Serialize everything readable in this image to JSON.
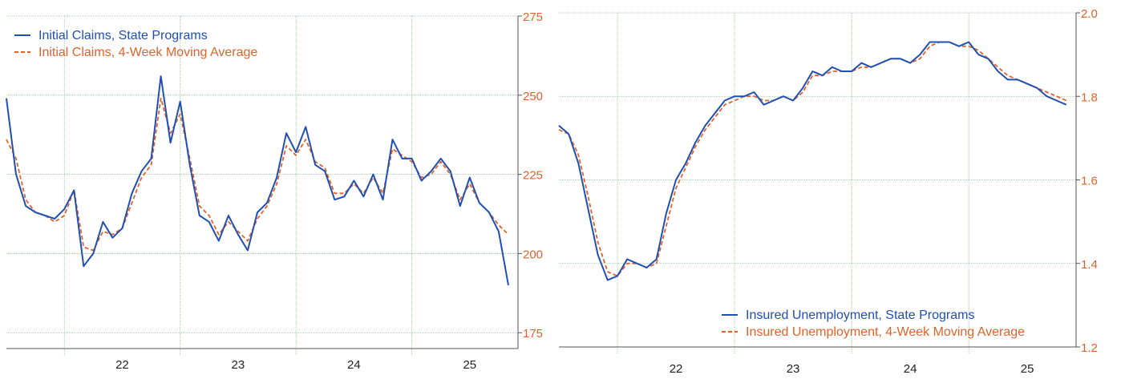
{
  "colors": {
    "blue": "#1f4fb3",
    "orange": "#e0622a",
    "grid": "#8fbf8f",
    "axis": "#555555"
  },
  "chart_data": [
    {
      "type": "line",
      "y_axis_side": "right",
      "grid": true,
      "legend_position": "top-left",
      "x_ticks": [
        "22",
        "23",
        "24",
        "25"
      ],
      "xlim": [
        "2021-07",
        "2025-12"
      ],
      "ylim": [
        170,
        275
      ],
      "y_ticks": [
        175,
        200,
        225,
        250,
        275
      ],
      "series": [
        {
          "name": "Initial Claims, State Programs",
          "style": "solid",
          "color": "#1f4fb3",
          "x": [
            "2021-07",
            "2021-08",
            "2021-09",
            "2021-10",
            "2021-11",
            "2021-12",
            "2022-01",
            "2022-02",
            "2022-03",
            "2022-04",
            "2022-05",
            "2022-06",
            "2022-07",
            "2022-08",
            "2022-09",
            "2022-10",
            "2022-11",
            "2022-12",
            "2023-01",
            "2023-02",
            "2023-03",
            "2023-04",
            "2023-05",
            "2023-06",
            "2023-07",
            "2023-08",
            "2023-09",
            "2023-10",
            "2023-11",
            "2023-12",
            "2024-01",
            "2024-02",
            "2024-03",
            "2024-04",
            "2024-05",
            "2024-06",
            "2024-07",
            "2024-08",
            "2024-09",
            "2024-10",
            "2024-11",
            "2024-12",
            "2025-01",
            "2025-02",
            "2025-03",
            "2025-04",
            "2025-05",
            "2025-06",
            "2025-07",
            "2025-08",
            "2025-09",
            "2025-10",
            "2025-11"
          ],
          "values": [
            249,
            225,
            215,
            213,
            212,
            211,
            214,
            220,
            196,
            200,
            210,
            205,
            208,
            219,
            226,
            230,
            256,
            235,
            248,
            228,
            212,
            210,
            204,
            212,
            206,
            201,
            213,
            216,
            224,
            238,
            232,
            240,
            228,
            226,
            217,
            218,
            223,
            218,
            225,
            217,
            236,
            230,
            230,
            223,
            226,
            230,
            226,
            215,
            224,
            216,
            213,
            207,
            190
          ]
        },
        {
          "name": "Initial Claims, 4-Week Moving Average",
          "style": "dashed",
          "color": "#e0622a",
          "x": [
            "2021-07",
            "2021-08",
            "2021-09",
            "2021-10",
            "2021-11",
            "2021-12",
            "2022-01",
            "2022-02",
            "2022-03",
            "2022-04",
            "2022-05",
            "2022-06",
            "2022-07",
            "2022-08",
            "2022-09",
            "2022-10",
            "2022-11",
            "2022-12",
            "2023-01",
            "2023-02",
            "2023-03",
            "2023-04",
            "2023-05",
            "2023-06",
            "2023-07",
            "2023-08",
            "2023-09",
            "2023-10",
            "2023-11",
            "2023-12",
            "2024-01",
            "2024-02",
            "2024-03",
            "2024-04",
            "2024-05",
            "2024-06",
            "2024-07",
            "2024-08",
            "2024-09",
            "2024-10",
            "2024-11",
            "2024-12",
            "2025-01",
            "2025-02",
            "2025-03",
            "2025-04",
            "2025-05",
            "2025-06",
            "2025-07",
            "2025-08",
            "2025-09",
            "2025-10",
            "2025-11"
          ],
          "values": [
            236,
            230,
            217,
            213,
            212,
            210,
            212,
            220,
            202,
            201,
            207,
            206,
            208,
            216,
            224,
            228,
            249,
            238,
            244,
            230,
            215,
            212,
            206,
            210,
            207,
            204,
            211,
            215,
            222,
            234,
            231,
            236,
            229,
            227,
            219,
            219,
            222,
            219,
            224,
            219,
            233,
            231,
            229,
            224,
            225,
            229,
            225,
            217,
            222,
            216,
            213,
            209,
            206
          ]
        }
      ]
    },
    {
      "type": "line",
      "y_axis_side": "right",
      "grid": true,
      "legend_position": "bottom-right",
      "x_ticks": [
        "22",
        "23",
        "24",
        "25"
      ],
      "xlim": [
        "2021-07",
        "2025-12"
      ],
      "ylim": [
        1.2,
        2.0
      ],
      "y_ticks": [
        1.2,
        1.4,
        1.6,
        1.8,
        2.0
      ],
      "series": [
        {
          "name": "Insured Unemployment, State Programs",
          "style": "solid",
          "color": "#1f4fb3",
          "x": [
            "2021-07",
            "2021-08",
            "2021-09",
            "2021-10",
            "2021-11",
            "2021-12",
            "2022-01",
            "2022-02",
            "2022-03",
            "2022-04",
            "2022-05",
            "2022-06",
            "2022-07",
            "2022-08",
            "2022-09",
            "2022-10",
            "2022-11",
            "2022-12",
            "2023-01",
            "2023-02",
            "2023-03",
            "2023-04",
            "2023-05",
            "2023-06",
            "2023-07",
            "2023-08",
            "2023-09",
            "2023-10",
            "2023-11",
            "2023-12",
            "2024-01",
            "2024-02",
            "2024-03",
            "2024-04",
            "2024-05",
            "2024-06",
            "2024-07",
            "2024-08",
            "2024-09",
            "2024-10",
            "2024-11",
            "2024-12",
            "2025-01",
            "2025-02",
            "2025-03",
            "2025-04",
            "2025-05",
            "2025-06",
            "2025-07",
            "2025-08",
            "2025-09",
            "2025-10",
            "2025-11"
          ],
          "values": [
            1.73,
            1.71,
            1.64,
            1.53,
            1.42,
            1.36,
            1.37,
            1.41,
            1.4,
            1.39,
            1.41,
            1.52,
            1.6,
            1.64,
            1.69,
            1.73,
            1.76,
            1.79,
            1.8,
            1.8,
            1.81,
            1.78,
            1.79,
            1.8,
            1.79,
            1.82,
            1.86,
            1.85,
            1.87,
            1.86,
            1.86,
            1.88,
            1.87,
            1.88,
            1.89,
            1.89,
            1.88,
            1.9,
            1.93,
            1.93,
            1.93,
            1.92,
            1.93,
            1.9,
            1.89,
            1.86,
            1.84,
            1.84,
            1.83,
            1.82,
            1.8,
            1.79,
            1.78
          ]
        },
        {
          "name": "Insured Unemployment, 4-Week Moving Average",
          "style": "dashed",
          "color": "#e0622a",
          "x": [
            "2021-07",
            "2021-08",
            "2021-09",
            "2021-10",
            "2021-11",
            "2021-12",
            "2022-01",
            "2022-02",
            "2022-03",
            "2022-04",
            "2022-05",
            "2022-06",
            "2022-07",
            "2022-08",
            "2022-09",
            "2022-10",
            "2022-11",
            "2022-12",
            "2023-01",
            "2023-02",
            "2023-03",
            "2023-04",
            "2023-05",
            "2023-06",
            "2023-07",
            "2023-08",
            "2023-09",
            "2023-10",
            "2023-11",
            "2023-12",
            "2024-01",
            "2024-02",
            "2024-03",
            "2024-04",
            "2024-05",
            "2024-06",
            "2024-07",
            "2024-08",
            "2024-09",
            "2024-10",
            "2024-11",
            "2024-12",
            "2025-01",
            "2025-02",
            "2025-03",
            "2025-04",
            "2025-05",
            "2025-06",
            "2025-07",
            "2025-08",
            "2025-09",
            "2025-10",
            "2025-11"
          ],
          "values": [
            1.72,
            1.71,
            1.66,
            1.56,
            1.45,
            1.38,
            1.37,
            1.4,
            1.4,
            1.39,
            1.4,
            1.49,
            1.58,
            1.63,
            1.68,
            1.72,
            1.75,
            1.78,
            1.79,
            1.8,
            1.8,
            1.79,
            1.79,
            1.8,
            1.79,
            1.81,
            1.85,
            1.85,
            1.86,
            1.86,
            1.86,
            1.87,
            1.87,
            1.88,
            1.89,
            1.89,
            1.88,
            1.89,
            1.92,
            1.93,
            1.93,
            1.92,
            1.92,
            1.91,
            1.89,
            1.87,
            1.85,
            1.84,
            1.83,
            1.82,
            1.81,
            1.8,
            1.79
          ]
        }
      ]
    }
  ]
}
